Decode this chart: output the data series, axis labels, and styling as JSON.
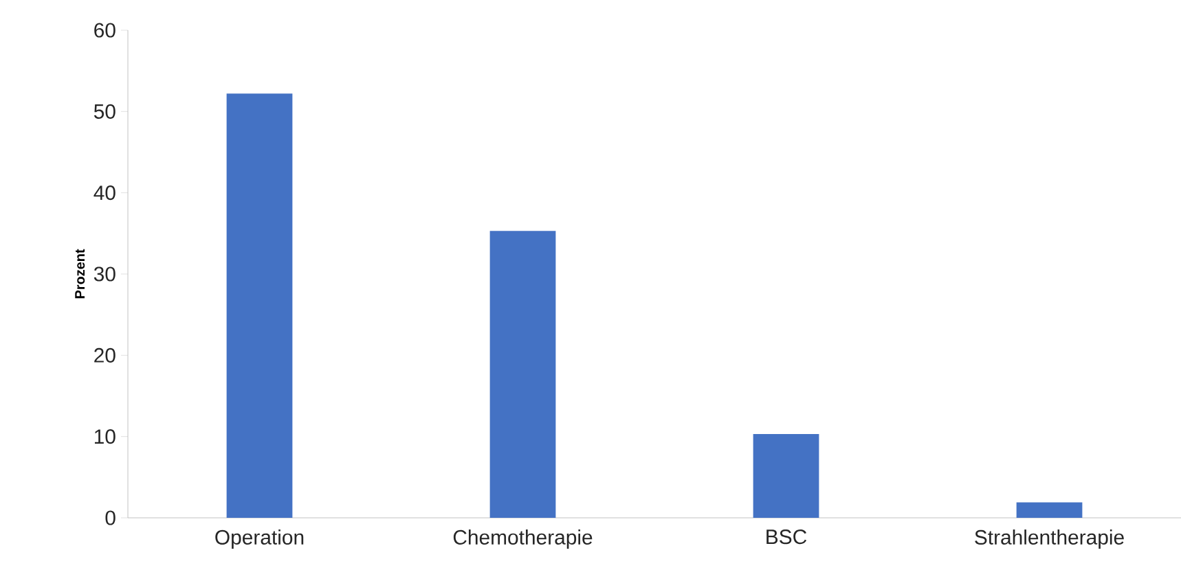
{
  "chart_data": {
    "type": "bar",
    "ylabel": "Prozent",
    "categories": [
      "Operation",
      "Chemotherapie",
      "BSC",
      "Strahlentherapie"
    ],
    "values": [
      52.2,
      35.3,
      10.3,
      1.9
    ],
    "color": "#4472c4",
    "ylim": [
      0,
      60
    ],
    "yticks": [
      0,
      10,
      20,
      30,
      40,
      50,
      60
    ],
    "grid": false
  }
}
